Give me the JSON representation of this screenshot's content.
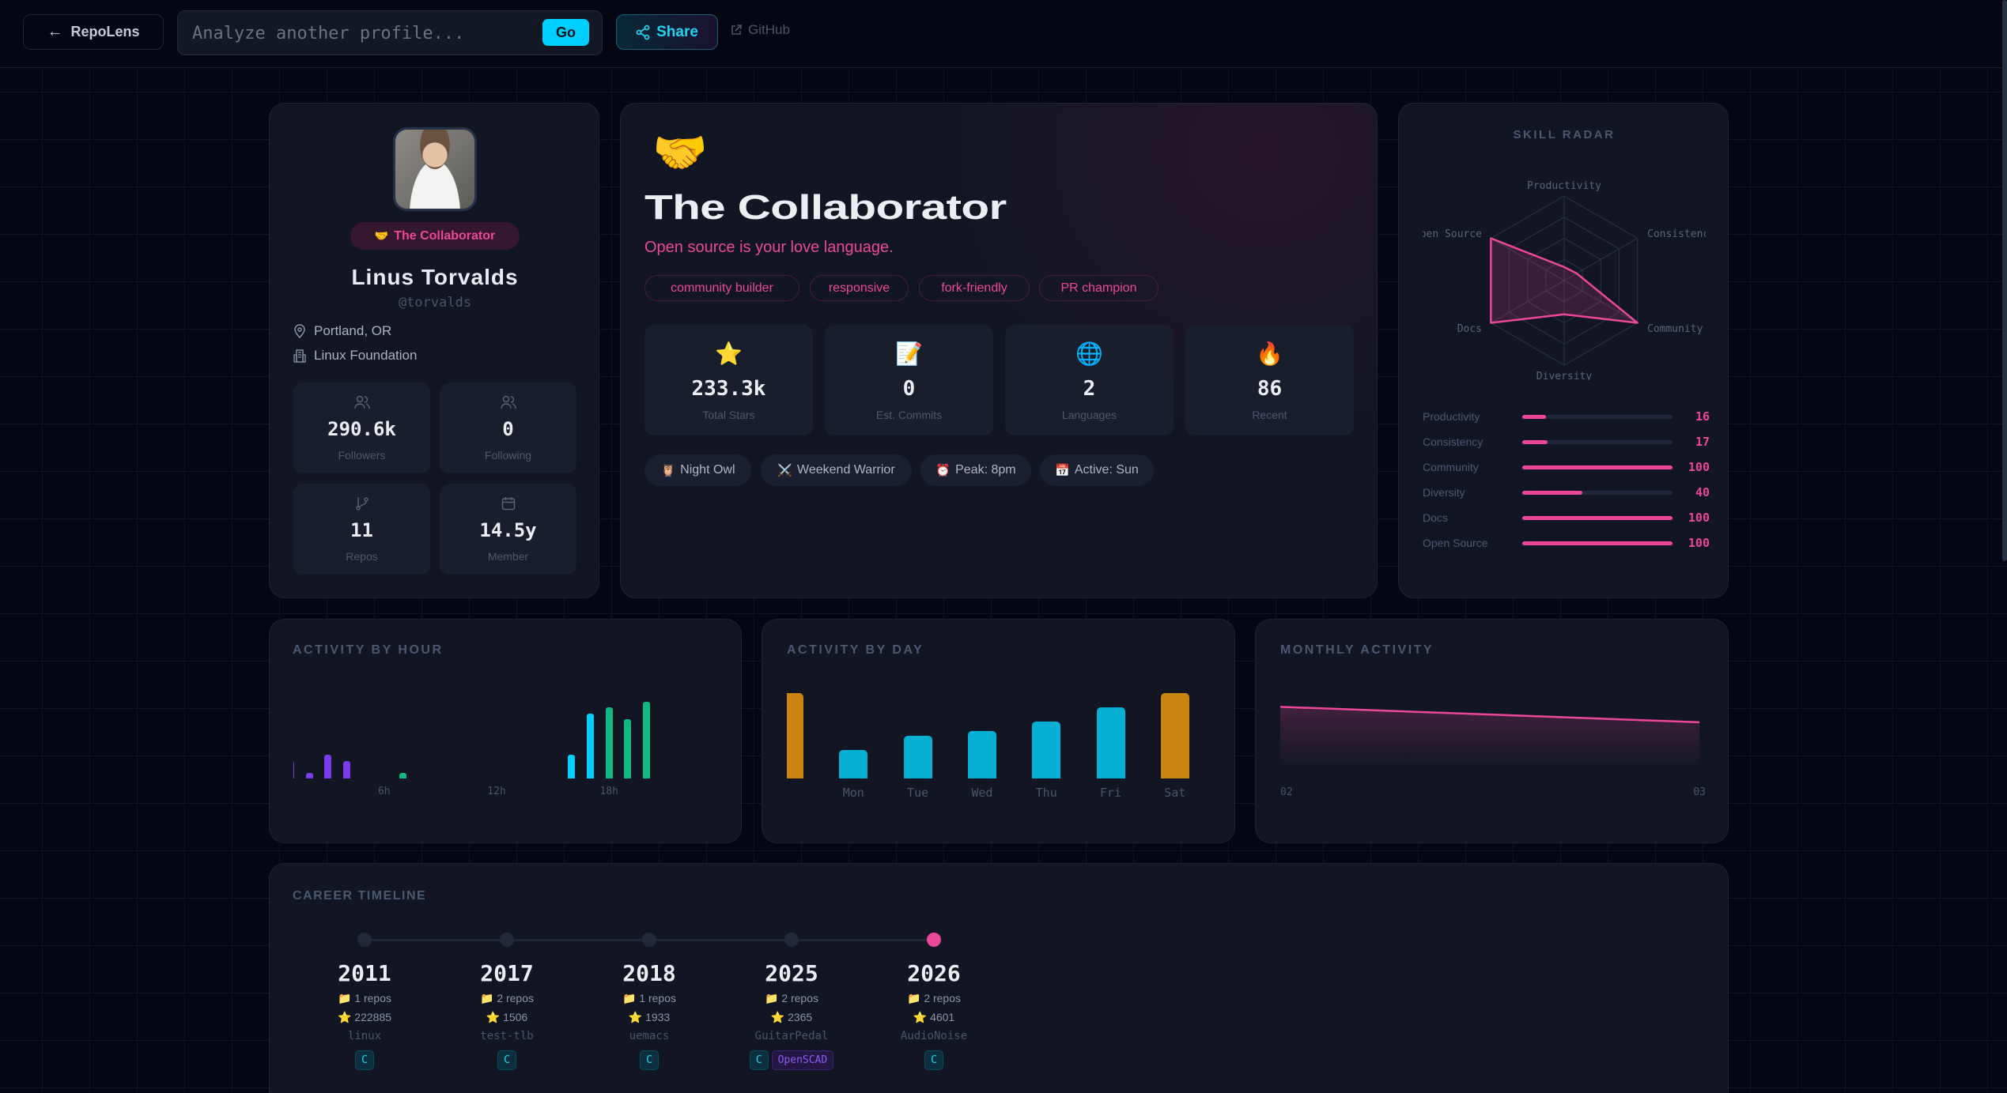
{
  "topbar": {
    "back_label": "RepoLens",
    "search_placeholder": "Analyze another profile...",
    "go_label": "Go",
    "share_label": "Share",
    "github_label": "GitHub"
  },
  "profile": {
    "archetype_badge": "The Collaborator",
    "archetype_emoji": "🤝",
    "name": "Linus Torvalds",
    "handle": "@torvalds",
    "location": "Portland, OR",
    "company": "Linux Foundation",
    "stats": [
      {
        "icon": "users-icon",
        "value": "290.6k",
        "label": "Followers"
      },
      {
        "icon": "users-icon",
        "value": "0",
        "label": "Following"
      },
      {
        "icon": "git-branch-icon",
        "value": "11",
        "label": "Repos"
      },
      {
        "icon": "calendar-icon",
        "value": "14.5y",
        "label": "Member"
      }
    ]
  },
  "hero": {
    "emoji": "🤝",
    "title": "The Collaborator",
    "tagline": "Open source is your love language.",
    "traits": [
      "community builder",
      "responsive",
      "fork-friendly",
      "PR champion"
    ],
    "stats": [
      {
        "emoji": "⭐",
        "value": "233.3k",
        "label": "Total Stars"
      },
      {
        "emoji": "📝",
        "value": "0",
        "label": "Est. Commits"
      },
      {
        "emoji": "🌐",
        "value": "2",
        "label": "Languages"
      },
      {
        "emoji": "🔥",
        "value": "86",
        "label": "Recent"
      }
    ],
    "badges": [
      {
        "emoji": "🦉",
        "label": "Night Owl"
      },
      {
        "emoji": "⚔️",
        "label": "Weekend Warrior"
      },
      {
        "emoji": "⏰",
        "label": "Peak: 8pm"
      },
      {
        "emoji": "📅",
        "label": "Active: Sun"
      }
    ]
  },
  "colors": {
    "accent": "#ec4899",
    "cyan": "#00cfff",
    "green": "#10b981",
    "purple": "#7c3aed",
    "amber": "#c98411",
    "day_blue": "#06b0d4"
  },
  "chart_data": [
    {
      "type": "radar",
      "title": "SKILL RADAR",
      "axes": [
        "Productivity",
        "Consistency",
        "Community",
        "Diversity",
        "Docs",
        "Open Source"
      ],
      "values": [
        16,
        17,
        100,
        40,
        100,
        100
      ],
      "range": [
        0,
        100
      ]
    },
    {
      "type": "bar",
      "title": "ACTIVITY BY HOUR",
      "x": [
        0,
        1,
        2,
        3,
        4,
        5,
        6,
        7,
        8,
        9,
        10,
        11,
        12,
        13,
        14,
        15,
        16,
        17,
        18,
        19,
        20,
        21,
        22,
        23
      ],
      "values": [
        0,
        3,
        1,
        4,
        3,
        0,
        0,
        1,
        0,
        0,
        0,
        0,
        0,
        0,
        0,
        0,
        4,
        11,
        12,
        10,
        13,
        6,
        7,
        11
      ],
      "bar_colors": [
        "#7c3aed",
        "#7c3aed",
        "#7c3aed",
        "#7c3aed",
        "#7c3aed",
        "#7c3aed",
        "#10b981",
        "#10b981",
        "#10b981",
        "#10b981",
        "#10b981",
        "#10b981",
        "#00cfff",
        "#00cfff",
        "#00cfff",
        "#00cfff",
        "#00cfff",
        "#00cfff",
        "#10b981",
        "#10b981",
        "#10b981",
        "#10b981",
        "#7c3aed",
        "#7c3aed"
      ],
      "tick_labels": [
        {
          "at": 6,
          "label": "6h"
        },
        {
          "at": 12,
          "label": "12h"
        },
        {
          "at": 18,
          "label": "18h"
        }
      ]
    },
    {
      "type": "bar",
      "title": "ACTIVITY BY DAY",
      "categories": [
        "",
        "Mon",
        "Tue",
        "Wed",
        "Thu",
        "Fri",
        "Sat"
      ],
      "values": [
        18,
        6,
        9,
        10,
        12,
        15,
        18
      ],
      "bar_colors": [
        "#c98411",
        "#06b0d4",
        "#06b0d4",
        "#06b0d4",
        "#06b0d4",
        "#06b0d4",
        "#c98411"
      ]
    },
    {
      "type": "area",
      "title": "MONTHLY ACTIVITY",
      "categories": [
        "02",
        "03"
      ],
      "values": [
        49,
        37
      ]
    }
  ],
  "timeline": {
    "title": "CAREER TIMELINE",
    "items": [
      {
        "year": "2011",
        "repos": "1 repos",
        "stars": "222885",
        "repo": "linux",
        "langs": [
          "C"
        ],
        "current": false
      },
      {
        "year": "2017",
        "repos": "2 repos",
        "stars": "1506",
        "repo": "test-tlb",
        "langs": [
          "C"
        ],
        "current": false
      },
      {
        "year": "2018",
        "repos": "1 repos",
        "stars": "1933",
        "repo": "uemacs",
        "langs": [
          "C"
        ],
        "current": false
      },
      {
        "year": "2025",
        "repos": "2 repos",
        "stars": "2365",
        "repo": "GuitarPedal",
        "langs": [
          "C",
          "OpenSCAD"
        ],
        "current": false
      },
      {
        "year": "2026",
        "repos": "2 repos",
        "stars": "4601",
        "repo": "AudioNoise",
        "langs": [
          "C"
        ],
        "current": true
      }
    ]
  }
}
